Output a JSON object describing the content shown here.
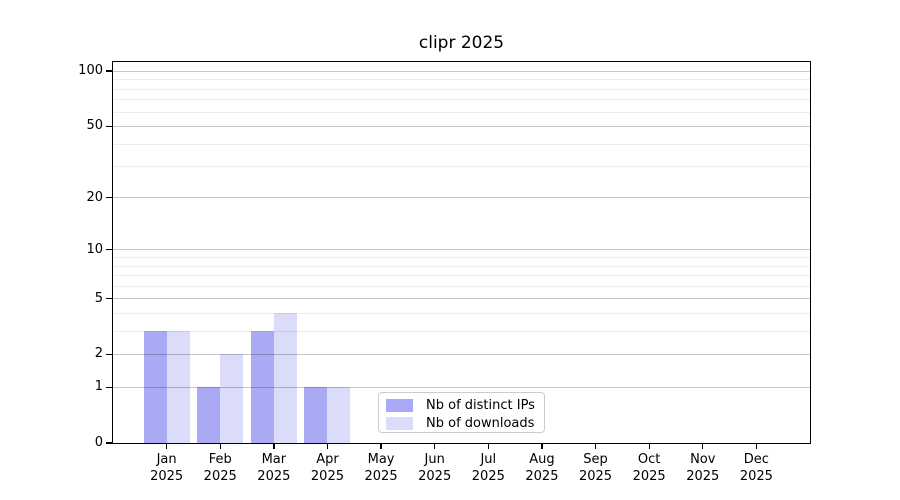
{
  "title": "clipr 2025",
  "legend": {
    "items": [
      {
        "label": "Nb of distinct IPs",
        "color": "#a9a9f6"
      },
      {
        "label": "Nb of downloads",
        "color": "#dbdbfa"
      }
    ]
  },
  "chart_data": {
    "type": "bar",
    "title": "clipr 2025",
    "x_tick_labels": [
      {
        "month": "Jan",
        "year": "2025"
      },
      {
        "month": "Feb",
        "year": "2025"
      },
      {
        "month": "Mar",
        "year": "2025"
      },
      {
        "month": "Apr",
        "year": "2025"
      },
      {
        "month": "May",
        "year": "2025"
      },
      {
        "month": "Jun",
        "year": "2025"
      },
      {
        "month": "Jul",
        "year": "2025"
      },
      {
        "month": "Aug",
        "year": "2025"
      },
      {
        "month": "Sep",
        "year": "2025"
      },
      {
        "month": "Oct",
        "year": "2025"
      },
      {
        "month": "Nov",
        "year": "2025"
      },
      {
        "month": "Dec",
        "year": "2025"
      }
    ],
    "series": [
      {
        "name": "Nb of distinct IPs",
        "color": "#a9a9f6",
        "values": [
          3,
          1,
          3,
          1,
          0,
          0,
          0,
          0,
          0,
          0,
          0,
          0
        ]
      },
      {
        "name": "Nb of downloads",
        "color": "#dbdbfa",
        "values": [
          3,
          2,
          4,
          1,
          0,
          0,
          0,
          0,
          0,
          0,
          0,
          0
        ]
      }
    ],
    "y_scale": "log10(1+x)",
    "y_major_ticks": [
      0,
      1,
      2,
      5,
      10,
      20,
      50,
      100
    ],
    "y_minor_gridlines": [
      3,
      4,
      6,
      7,
      8,
      9,
      30,
      40,
      60,
      70,
      80,
      90
    ],
    "ylim": [
      0,
      112
    ],
    "grid": "horizontal-only",
    "legend_position": "lower-center",
    "axis_color": "#000000",
    "major_grid_color": "rgba(0,0,0,0.22)",
    "minor_grid_color": "rgba(0,0,0,0.07)"
  }
}
